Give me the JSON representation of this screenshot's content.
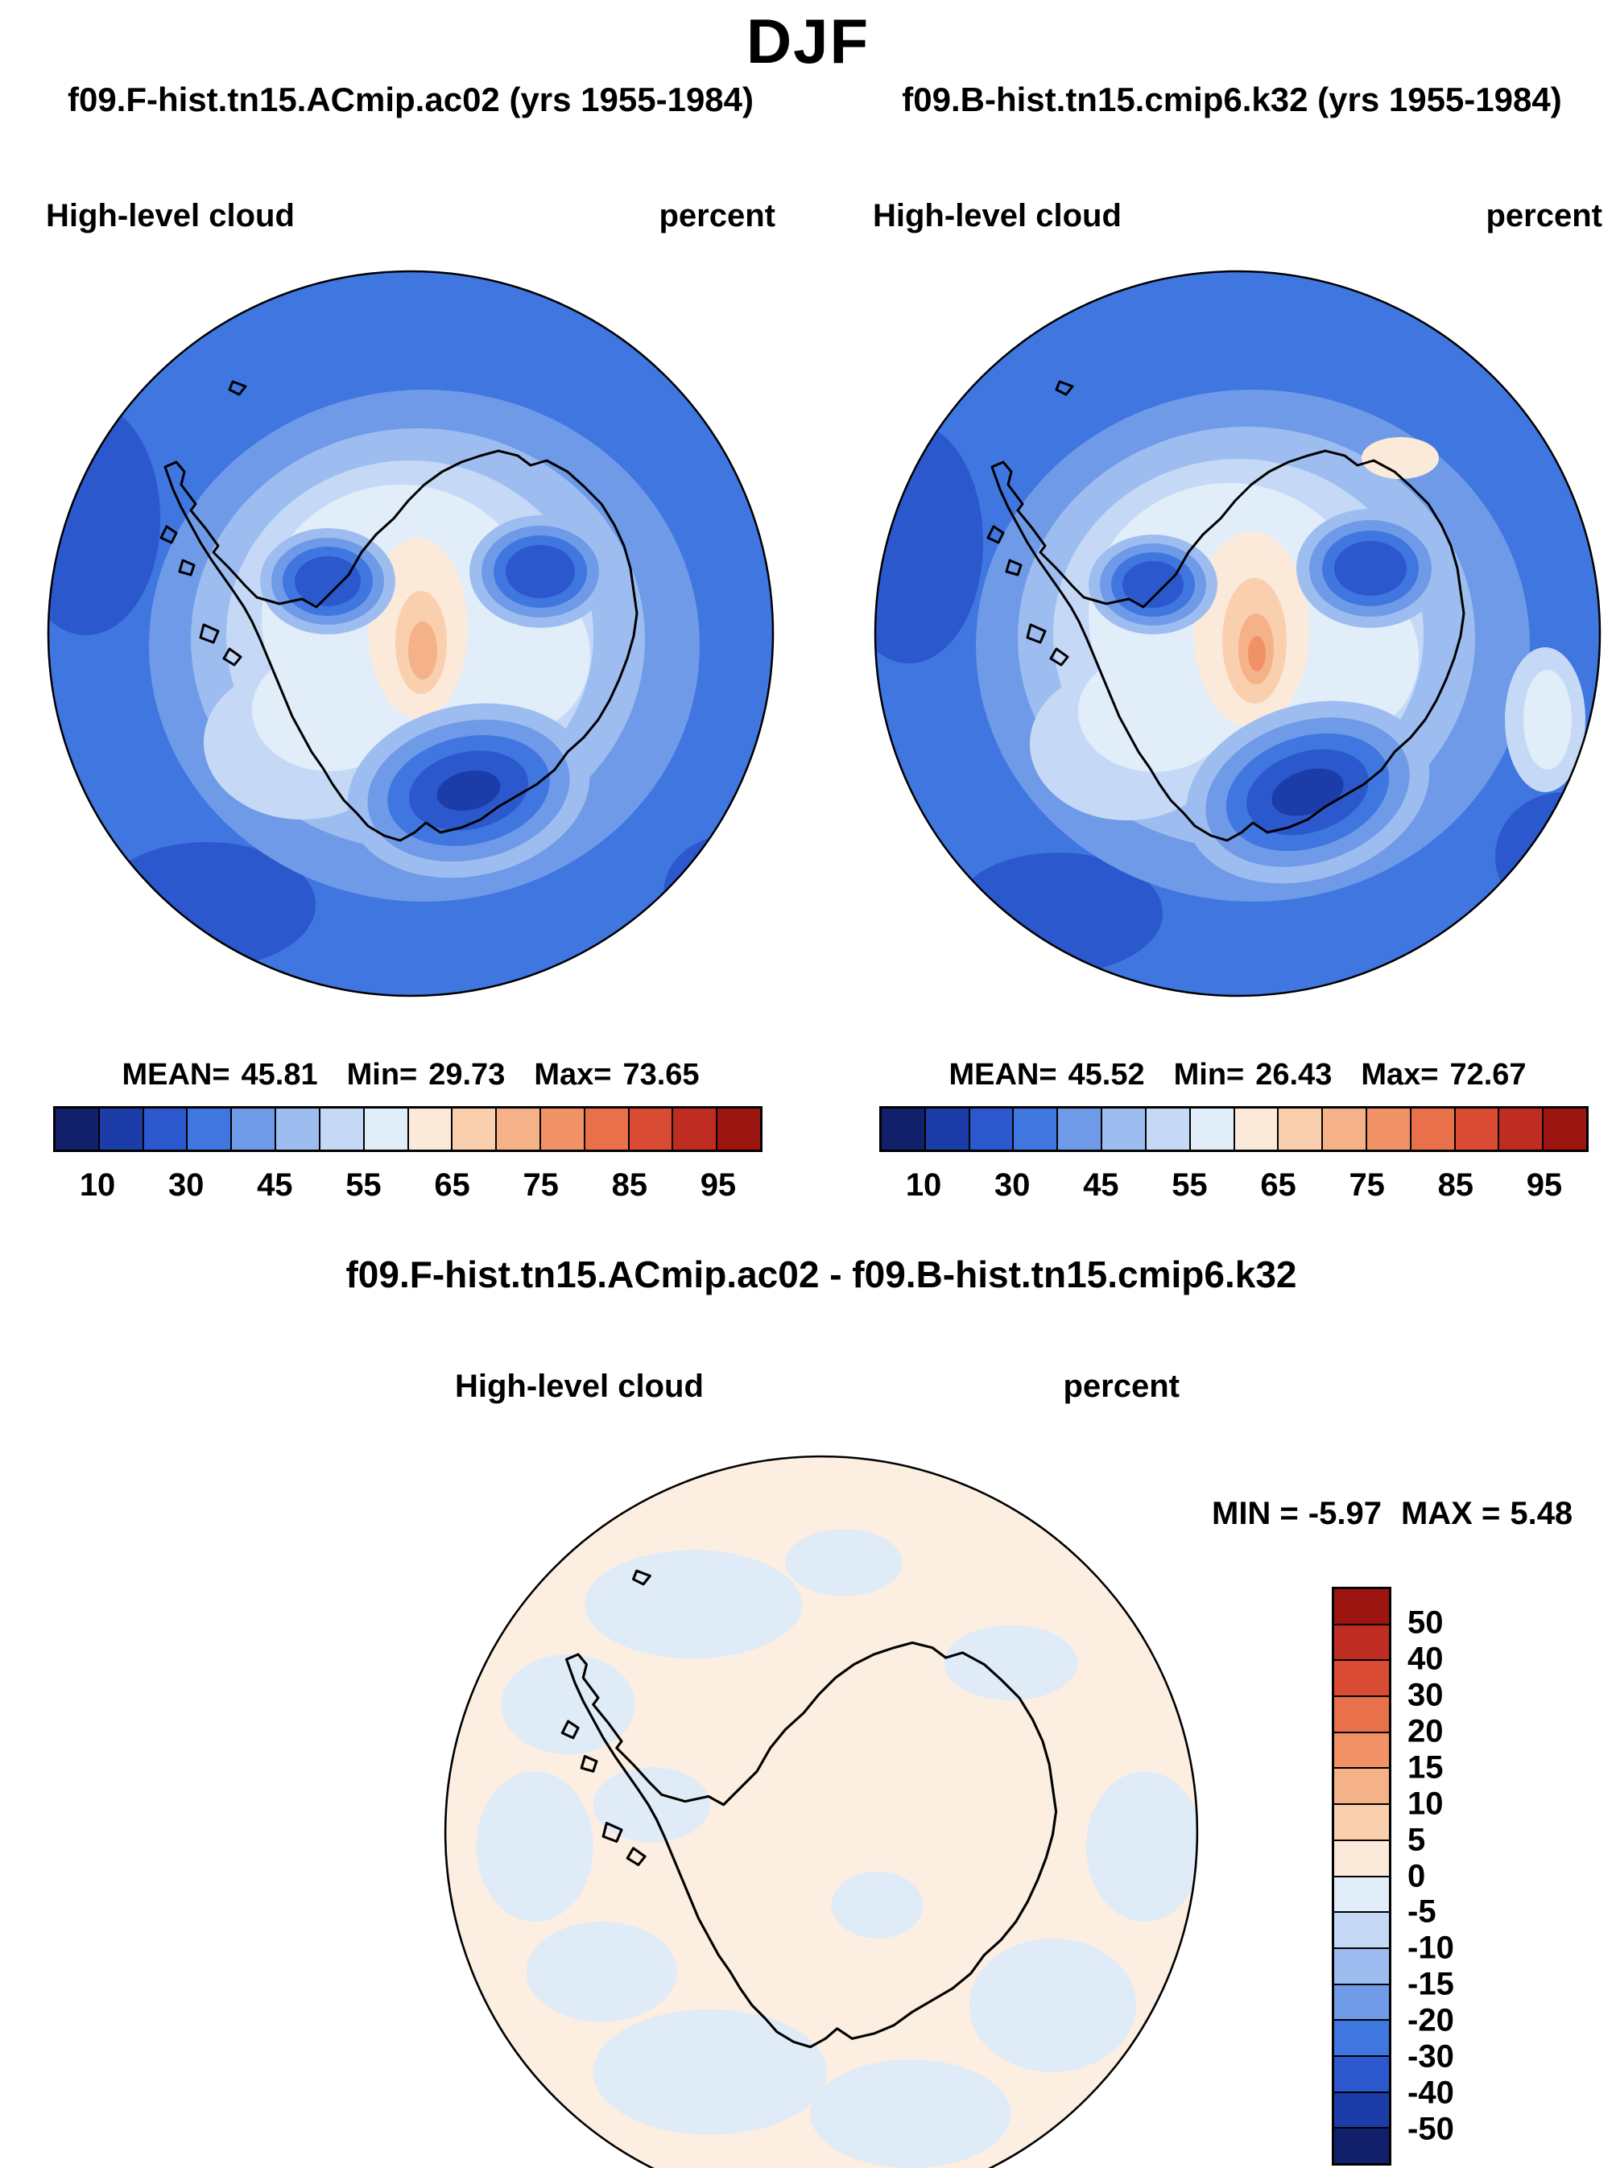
{
  "page": {
    "title": "DJF"
  },
  "panels": [
    {
      "title": "f09.F-hist.tn15.ACmip.ac02 (yrs 1955-1984)",
      "field": "High-level cloud",
      "units": "percent",
      "stats": {
        "mean_label": "MEAN=",
        "mean": "45.81",
        "min_label": "Min=",
        "min": "29.73",
        "max_label": "Max=",
        "max": "73.65"
      }
    },
    {
      "title": "f09.B-hist.tn15.cmip6.k32 (yrs 1955-1984)",
      "field": "High-level cloud",
      "units": "percent",
      "stats": {
        "mean_label": "MEAN=",
        "mean": "45.52",
        "min_label": "Min=",
        "min": "26.43",
        "max_label": "Max=",
        "max": "72.67"
      }
    }
  ],
  "diff": {
    "title": "f09.F-hist.tn15.ACmip.ac02 - f09.B-hist.tn15.cmip6.k32",
    "field": "High-level cloud",
    "units": "percent",
    "min_label": "MIN =",
    "min": "-5.97",
    "max_label": "MAX =",
    "max": "5.48"
  },
  "colorbar": {
    "ticks": [
      "10",
      "30",
      "45",
      "55",
      "65",
      "75",
      "85",
      "95"
    ],
    "colors": [
      "#121f6b",
      "#1c3ca8",
      "#2b58cc",
      "#3f76e0",
      "#6f9ae8",
      "#9dbdf0",
      "#c5d9f6",
      "#e2edfa",
      "#fbeada",
      "#f9cfae",
      "#f5b288",
      "#f19266",
      "#e8704b",
      "#d94b33",
      "#bf2c22",
      "#9c1511"
    ]
  },
  "diff_colorbar": {
    "ticks": [
      "50",
      "40",
      "30",
      "20",
      "15",
      "10",
      "5",
      "0",
      "-5",
      "-10",
      "-15",
      "-20",
      "-30",
      "-40",
      "-50"
    ],
    "colors": [
      "#9c1511",
      "#bf2c22",
      "#d94b33",
      "#e8704b",
      "#f19266",
      "#f5b288",
      "#f9cfae",
      "#fbeada",
      "#e2edfa",
      "#c5d9f6",
      "#9dbdf0",
      "#6f9ae8",
      "#3f76e0",
      "#2b58cc",
      "#1c3ca8",
      "#121f6b"
    ]
  },
  "chart_data": [
    {
      "type": "heatmap",
      "subtype": "south-polar-stereographic-contour-map",
      "season": "DJF",
      "title": "f09.F-hist.tn15.ACmip.ac02 (yrs 1955-1984)",
      "years": "1955-1984",
      "variable": "High-level cloud",
      "units": "percent",
      "region": "Antarctica / Southern Ocean",
      "stats": {
        "mean": 45.81,
        "min": 29.73,
        "max": 73.65
      },
      "contour_levels": [
        10,
        20,
        30,
        40,
        45,
        50,
        55,
        60,
        65,
        70,
        75,
        80,
        85,
        90,
        95
      ],
      "legend_position": "bottom"
    },
    {
      "type": "heatmap",
      "subtype": "south-polar-stereographic-contour-map",
      "season": "DJF",
      "title": "f09.B-hist.tn15.cmip6.k32 (yrs 1955-1984)",
      "years": "1955-1984",
      "variable": "High-level cloud",
      "units": "percent",
      "region": "Antarctica / Southern Ocean",
      "stats": {
        "mean": 45.52,
        "min": 26.43,
        "max": 72.67
      },
      "contour_levels": [
        10,
        20,
        30,
        40,
        45,
        50,
        55,
        60,
        65,
        70,
        75,
        80,
        85,
        90,
        95
      ],
      "legend_position": "bottom"
    },
    {
      "type": "heatmap",
      "subtype": "south-polar-stereographic-contour-map",
      "season": "DJF",
      "title": "f09.F-hist.tn15.ACmip.ac02 - f09.B-hist.tn15.cmip6.k32",
      "variable": "High-level cloud difference",
      "units": "percent",
      "region": "Antarctica / Southern Ocean",
      "stats": {
        "min": -5.97,
        "max": 5.48
      },
      "contour_levels": [
        -50,
        -40,
        -30,
        -20,
        -15,
        -10,
        -5,
        0,
        5,
        10,
        15,
        20,
        30,
        40,
        50
      ],
      "legend_position": "right"
    }
  ]
}
